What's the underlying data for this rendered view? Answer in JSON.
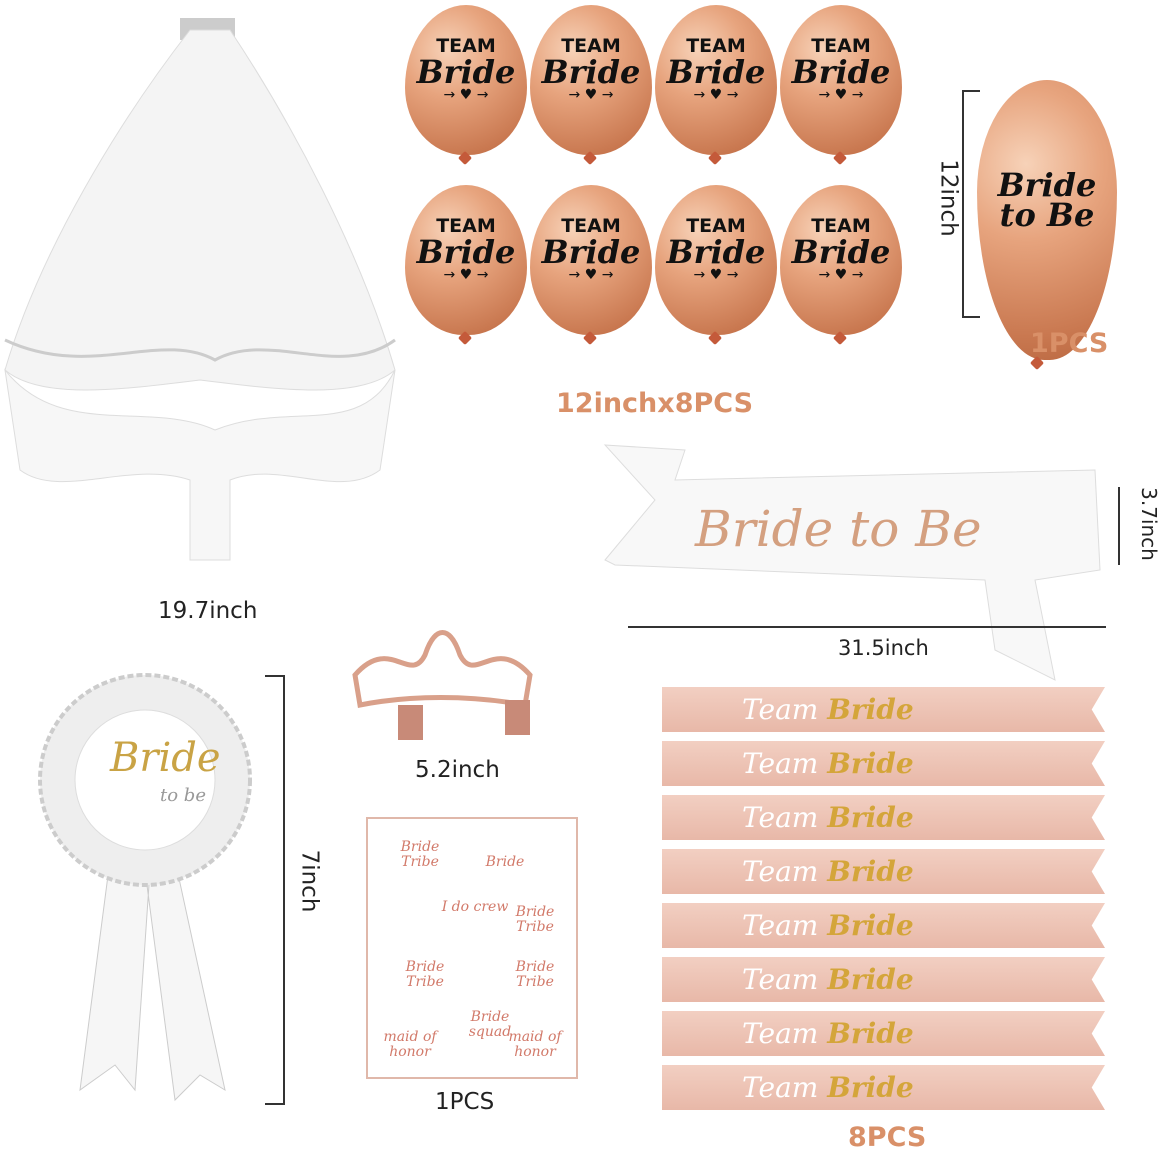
{
  "labels": {
    "balloons": "12inchx8PCS",
    "balloon_height": "12inch",
    "single_balloon": "1PCS",
    "veil": "19.7inch",
    "sash_height": "3.7inch",
    "sash_width": "31.5inch",
    "tiara": "5.2inch",
    "rosette": "7inch",
    "tattoo": "1PCS",
    "team_sashes": "8PCS"
  },
  "balloon": {
    "team": "TEAM",
    "bride": "Bride",
    "arrow": "→ ♥ →"
  },
  "single_balloon": {
    "line1": "Bride",
    "line2": "to Be"
  },
  "sash": {
    "text": "Bride to Be"
  },
  "rosette": {
    "line1": "Bride",
    "line2": "to be"
  },
  "team_sash": {
    "team": "Team",
    "bride": "Bride"
  },
  "tattoos": [
    "Bride Tribe",
    "Bride",
    "I do crew",
    "Bride Tribe",
    "Bride Tribe",
    "Bride Tribe",
    "Bride squad",
    "maid of honor",
    "maid of honor"
  ],
  "colors": {
    "rose_gold": "#d99068",
    "pink_sash": "#f2cfc2",
    "gold": "#d4a53a"
  }
}
